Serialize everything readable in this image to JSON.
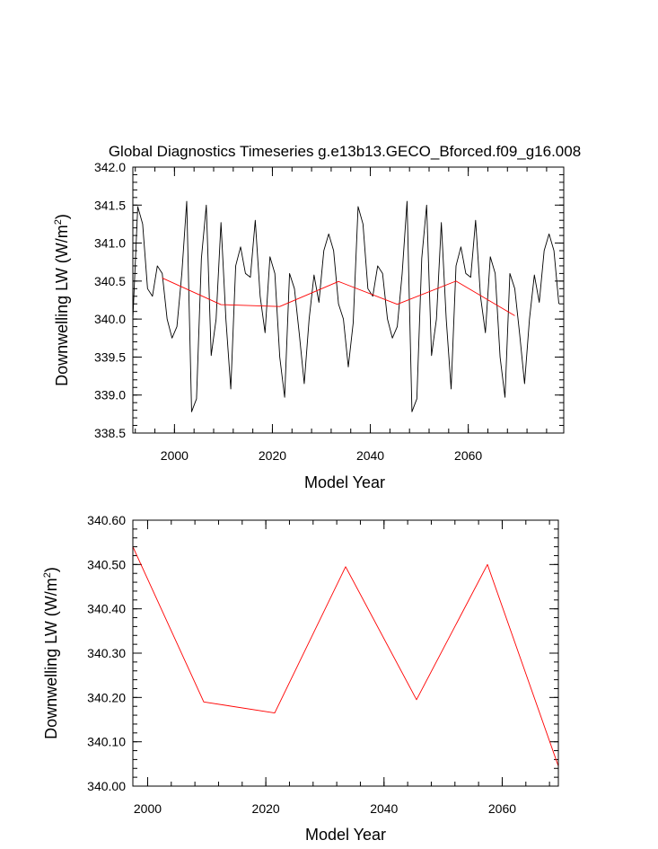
{
  "chart_data": [
    {
      "type": "line",
      "title": "Global Diagnostics Timeseries g.e13b13.GECO_Bforced.f09_g16.008",
      "xlabel": "Model Year",
      "ylabel": "Downwelling LW (W/m",
      "ylabel_sup": "2",
      "ylabel_close": ")",
      "xlim": [
        1991.5,
        2079.5
      ],
      "ylim": [
        338.5,
        342.0
      ],
      "xticks": [
        2000,
        2020,
        2040,
        2060
      ],
      "xtick_labels": [
        "2000",
        "2020",
        "2040",
        "2060"
      ],
      "yticks": [
        338.5,
        339.0,
        339.5,
        340.0,
        340.5,
        341.0,
        341.5,
        342.0
      ],
      "ytick_labels": [
        "338.5",
        "339.0",
        "339.5",
        "340.0",
        "340.5",
        "341.0",
        "341.5",
        "342.0"
      ],
      "series": [
        {
          "color": "#000000",
          "x_start": 1991.5,
          "x_step": 1,
          "values": [
            340.0,
            341.48,
            341.25,
            340.4,
            340.3,
            340.7,
            340.6,
            340.0,
            339.75,
            339.9,
            340.6,
            341.55,
            338.78,
            338.95,
            340.8,
            341.5,
            339.52,
            340.0,
            341.27,
            340.0,
            339.08,
            340.7,
            340.95,
            340.6,
            340.55,
            341.3,
            340.3,
            339.82,
            340.82,
            340.6,
            339.5,
            338.97,
            340.6,
            340.4,
            339.8,
            339.15,
            340.0,
            340.58,
            340.22,
            340.9,
            341.12,
            340.9,
            340.2,
            340.0,
            339.37,
            339.95,
            341.48,
            341.25,
            340.4,
            340.3,
            340.7,
            340.6,
            340.0,
            339.75,
            339.9,
            340.6,
            341.55,
            338.78,
            338.95,
            340.8,
            341.5,
            339.52,
            340.0,
            341.27,
            340.0,
            339.08,
            340.7,
            340.95,
            340.6,
            340.55,
            341.3,
            340.3,
            339.82,
            340.82,
            340.6,
            339.5,
            338.97,
            340.6,
            340.4,
            339.8,
            339.15,
            340.0,
            340.58,
            340.22,
            340.9,
            341.12,
            340.9,
            340.2
          ]
        },
        {
          "color": "#ff0000",
          "x": [
            1997.5,
            2009.5,
            2021.5,
            2033.5,
            2045.5,
            2057.5,
            2069.5
          ],
          "values": [
            340.54,
            340.19,
            340.165,
            340.495,
            340.195,
            340.5,
            340.045
          ]
        }
      ]
    },
    {
      "type": "line",
      "xlabel": "Model Year",
      "ylabel": "Downwelling LW (W/m",
      "ylabel_sup": "2",
      "ylabel_close": ")",
      "xlim": [
        1997.5,
        2069.5
      ],
      "ylim": [
        340.0,
        340.6
      ],
      "xticks": [
        2000,
        2020,
        2040,
        2060
      ],
      "xtick_labels": [
        "2000",
        "2020",
        "2040",
        "2060"
      ],
      "yticks": [
        340.0,
        340.1,
        340.2,
        340.3,
        340.4,
        340.5,
        340.6
      ],
      "ytick_labels": [
        "340.00",
        "340.10",
        "340.20",
        "340.30",
        "340.40",
        "340.50",
        "340.60"
      ],
      "series": [
        {
          "color": "#ff0000",
          "x": [
            1997.5,
            2009.5,
            2021.5,
            2033.5,
            2045.5,
            2057.5,
            2069.5
          ],
          "values": [
            340.54,
            340.19,
            340.165,
            340.495,
            340.195,
            340.5,
            340.045
          ]
        }
      ]
    }
  ]
}
